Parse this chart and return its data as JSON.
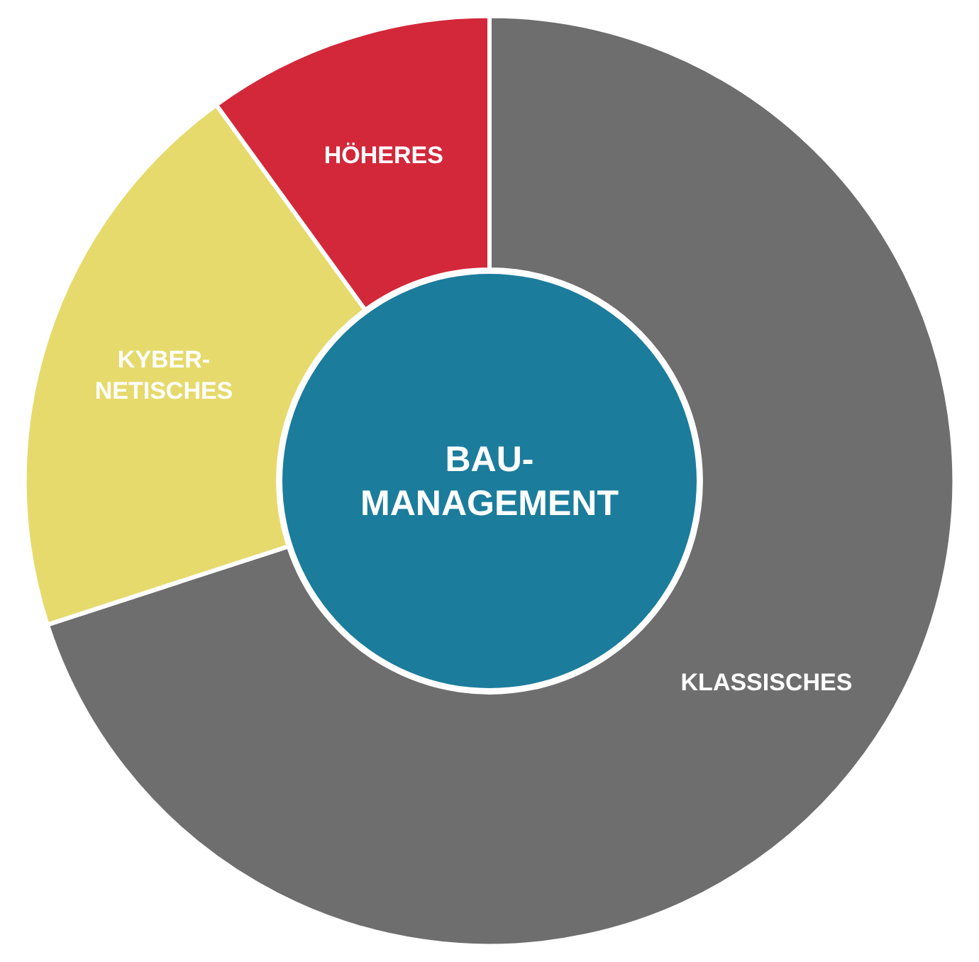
{
  "chart_data": {
    "type": "donut",
    "categories": [
      "KLASSISCHES",
      "KYBER-\nNETISCHES",
      "HÖHERES"
    ],
    "values": [
      70,
      20,
      10
    ],
    "colors": [
      "#6e6e6e",
      "#e6da6c",
      "#d3283a"
    ],
    "annotations": [
      "BAU-\nMANAGEMENT"
    ],
    "legend": false
  }
}
